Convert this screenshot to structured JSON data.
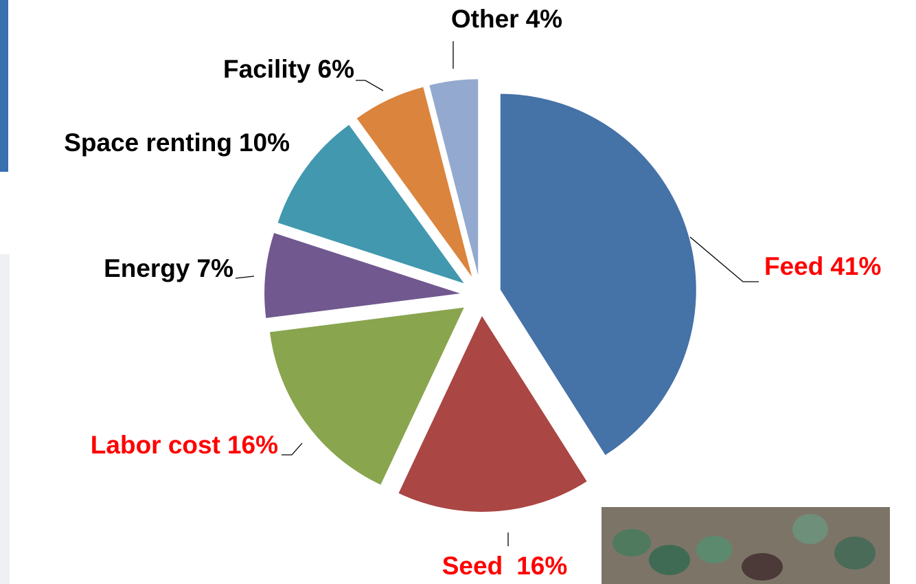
{
  "chart_data": {
    "type": "pie",
    "categories": [
      "Feed",
      "Seed",
      "Labor cost",
      "Energy",
      "Space renting",
      "Facility",
      "Other"
    ],
    "values": [
      41,
      16,
      16,
      7,
      10,
      6,
      4
    ],
    "value_labels": [
      "41%",
      "16%",
      "16%",
      "7%",
      "10%",
      "6%",
      "4%"
    ],
    "colors": [
      "#4572a7",
      "#aa4643",
      "#89a54e",
      "#71588f",
      "#4198af",
      "#db843d",
      "#93a9cf"
    ],
    "label_colors": [
      "#ff0000",
      "#ff0000",
      "#ff0000",
      "#000000",
      "#000000",
      "#000000",
      "#000000"
    ]
  }
}
